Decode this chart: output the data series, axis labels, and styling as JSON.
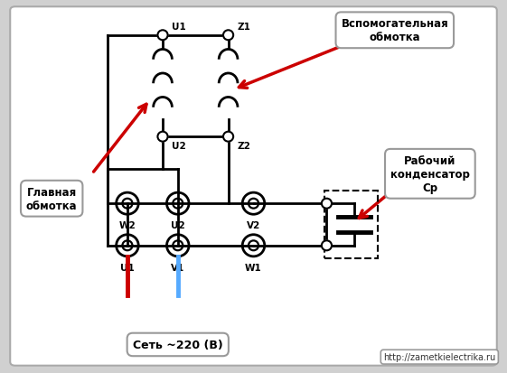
{
  "bg_color": "#d0d0d0",
  "diagram_bg": "#ffffff",
  "title_label1": "Вспомогательная\nобмотка",
  "title_label2": "Рабочий\nконденсатор\nСр",
  "title_label3": "Главная\nобмотка",
  "bottom_label": "Сеть ~220 (В)",
  "url_label": "http://zametkielectrika.ru",
  "line_color": "#000000",
  "red_color": "#cc0000",
  "blue_color": "#55aaff",
  "lw": 2.0
}
